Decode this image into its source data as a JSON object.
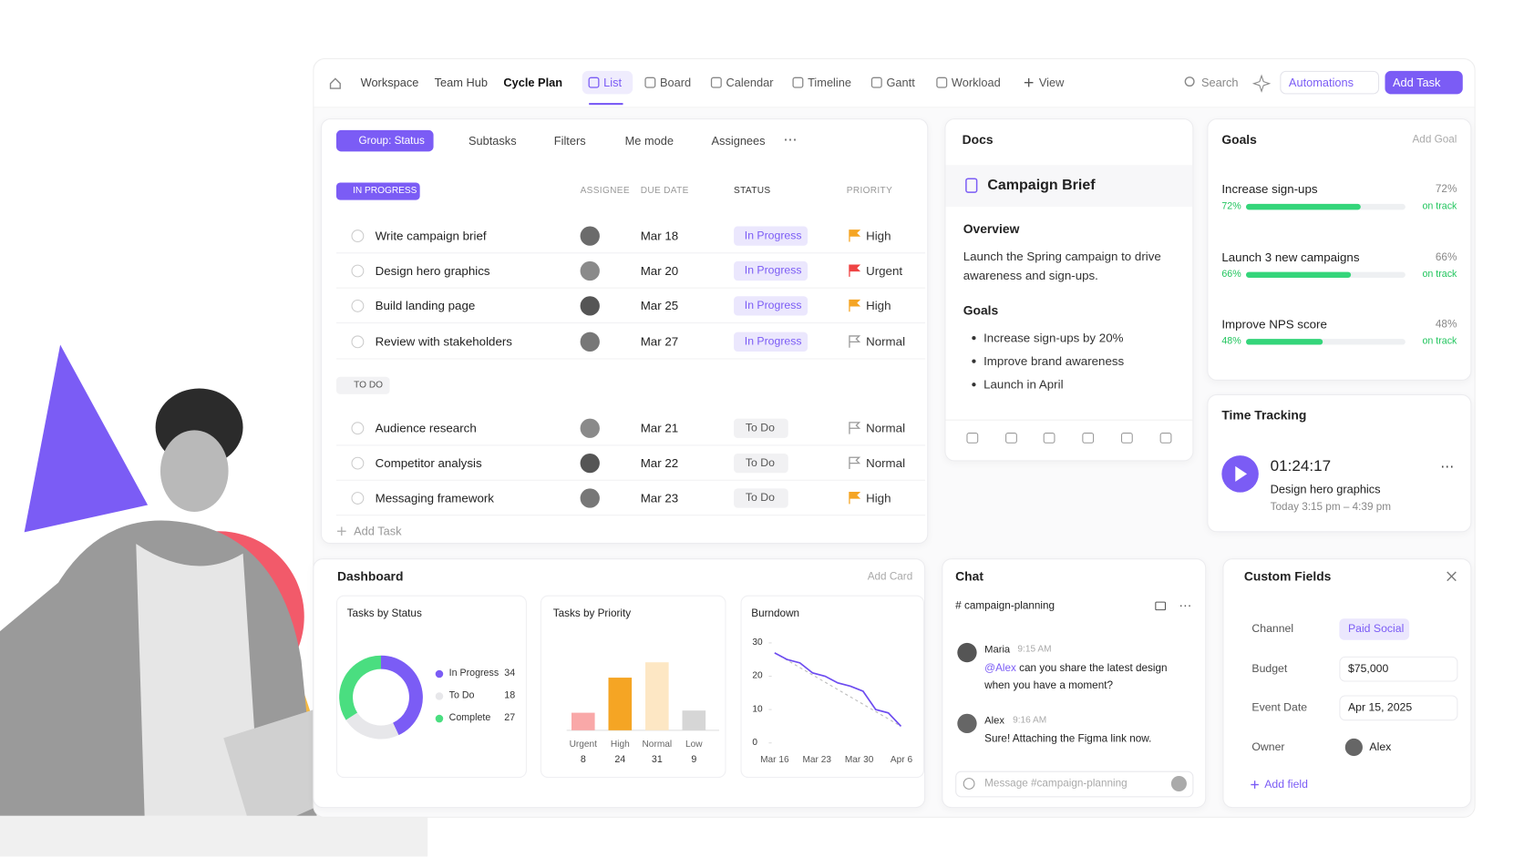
{
  "nav": {
    "breadcrumbs": [
      "Workspace",
      "Team Hub",
      "Cycle Plan"
    ],
    "views": [
      "List",
      "Board",
      "Calendar",
      "Timeline",
      "Gantt",
      "Workload"
    ],
    "add_view": "View",
    "search": "Search",
    "automations": "Automations",
    "add_task": "Add Task"
  },
  "tasks": {
    "toolbar": [
      "Group: Status",
      "Subtasks",
      "Filters",
      "Me mode",
      "Assignees"
    ],
    "columns": [
      "ASSIGNEE",
      "DUE DATE",
      "STATUS",
      "PRIORITY"
    ],
    "groups": [
      {
        "label": "IN PROGRESS",
        "rows": [
          {
            "name": "Write campaign brief",
            "due": "Mar 18",
            "status": "In Progress",
            "priority": "High",
            "flag_color": "#f5a524"
          },
          {
            "name": "Design hero graphics",
            "due": "Mar 20",
            "status": "In Progress",
            "priority": "Urgent",
            "flag_color": "#ef4444"
          },
          {
            "name": "Build landing page",
            "due": "Mar 25",
            "status": "In Progress",
            "priority": "High",
            "flag_color": "#f5a524"
          },
          {
            "name": "Review with stakeholders",
            "due": "Mar 27",
            "status": "In Progress",
            "priority": "Normal",
            "flag_color": null
          }
        ]
      },
      {
        "label": "TO DO",
        "rows": [
          {
            "name": "Audience research",
            "due": "Mar 21",
            "status": "To Do",
            "priority": "Normal",
            "flag_color": null
          },
          {
            "name": "Competitor analysis",
            "due": "Mar 22",
            "status": "To Do",
            "priority": "Normal",
            "flag_color": null
          },
          {
            "name": "Messaging framework",
            "due": "Mar 23",
            "status": "To Do",
            "priority": "High",
            "flag_color": "#f5a524"
          }
        ]
      }
    ],
    "add_task": "Add Task"
  },
  "docs": {
    "title": "Docs",
    "doc_title": "Campaign Brief",
    "overview_heading": "Overview",
    "overview_text": "Launch the Spring campaign to drive awareness and sign-ups.",
    "goals_heading": "Goals",
    "goals": [
      "Increase sign-ups by 20%",
      "Improve brand awareness",
      "Launch in April"
    ]
  },
  "goals": {
    "title": "Goals",
    "add": "Add Goal",
    "items": [
      {
        "name": "Increase sign-ups",
        "progress": 72,
        "label": "72%",
        "status": "on track"
      },
      {
        "name": "Launch 3 new campaigns",
        "progress": 66,
        "label": "66%",
        "status": "on track"
      },
      {
        "name": "Improve NPS score",
        "progress": 48,
        "label": "48%",
        "status": "on track"
      }
    ]
  },
  "time_tracking": {
    "title": "Time Tracking",
    "timer": "01:24:17",
    "task": "Design hero graphics",
    "span": "Today 3:15 pm – 4:39 pm"
  },
  "dashboard": {
    "title": "Dashboard",
    "add": "Add Card",
    "status_chart": {
      "type": "pie",
      "title": "Tasks by Status",
      "categories": [
        "In Progress",
        "To Do",
        "Complete"
      ],
      "values": [
        34,
        18,
        27
      ],
      "colors": [
        "#7b5cf5",
        "#e7e7ea",
        "#4ade80"
      ]
    },
    "priority_chart": {
      "type": "bar",
      "title": "Tasks by Priority",
      "categories": [
        "Urgent",
        "High",
        "Normal",
        "Low"
      ],
      "values": [
        8,
        24,
        31,
        9
      ],
      "colors": [
        "#f9a8a8",
        "#f5a524",
        "#fde7c4",
        "#d6d6d6"
      ]
    },
    "burndown": {
      "type": "line",
      "title": "Burndown",
      "x_labels": [
        "Mar 16",
        "Mar 23",
        "Mar 30",
        "Apr 6"
      ],
      "values": [
        27,
        25,
        24,
        21,
        20,
        18,
        17,
        15.5,
        10,
        9,
        5
      ],
      "ylim": [
        0,
        30
      ],
      "yticks": [
        0,
        10,
        20,
        30
      ],
      "color": "#6d4cf0"
    }
  },
  "chat": {
    "title": "Chat",
    "channel": "# campaign-planning",
    "messages": [
      {
        "author": "Maria",
        "time": "9:15 AM",
        "mention": "@Alex",
        "text": "can you share the latest design when you have a moment?"
      },
      {
        "author": "Alex",
        "time": "9:16 AM",
        "text": "Sure! Attaching the Figma link now."
      }
    ],
    "placeholder": "Message #campaign-planning"
  },
  "custom_fields": {
    "title": "Custom Fields",
    "fields": [
      {
        "label": "Channel",
        "value": "Paid Social"
      },
      {
        "label": "Budget",
        "value": "$75,000"
      },
      {
        "label": "Event Date",
        "value": "Apr 15, 2025"
      },
      {
        "label": "Owner",
        "value": "Alex"
      }
    ],
    "add": "Add field"
  }
}
